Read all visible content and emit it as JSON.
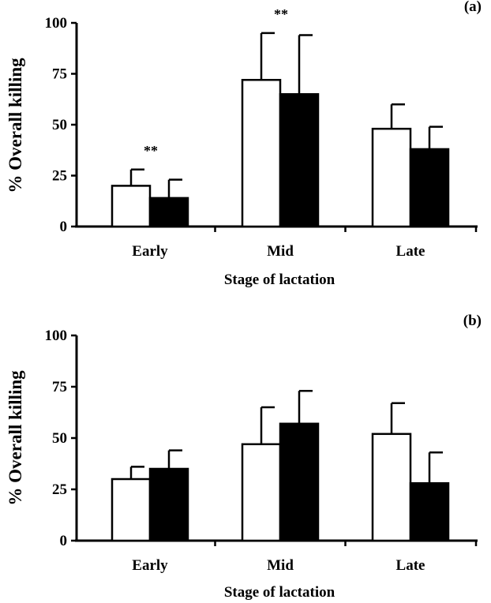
{
  "chart_data": [
    {
      "type": "bar",
      "panel_label": "(a)",
      "categories": [
        "Early",
        "Mid",
        "Late"
      ],
      "series": [
        {
          "color": "#ffffff",
          "values": [
            20,
            72,
            48
          ],
          "errors": [
            8,
            23,
            12
          ]
        },
        {
          "color": "#000000",
          "values": [
            14,
            65,
            38
          ],
          "errors": [
            9,
            29,
            11
          ]
        }
      ],
      "significance": [
        "**",
        "**",
        ""
      ],
      "xlabel": "Stage of lactation",
      "ylabel": "% Overall killing",
      "ylim": [
        0,
        100
      ],
      "yticks": [
        "0",
        "25",
        "50",
        "75",
        "100"
      ],
      "grid": false,
      "legend": "none"
    },
    {
      "type": "bar",
      "panel_label": "(b)",
      "categories": [
        "Early",
        "Mid",
        "Late"
      ],
      "series": [
        {
          "color": "#ffffff",
          "values": [
            30,
            47,
            52
          ],
          "errors": [
            6,
            18,
            15
          ]
        },
        {
          "color": "#000000",
          "values": [
            35,
            57,
            28
          ],
          "errors": [
            9,
            16,
            15
          ]
        }
      ],
      "significance": [
        "",
        "",
        ""
      ],
      "xlabel": "Stage of lactation",
      "ylabel": "% Overall killing",
      "ylim": [
        0,
        100
      ],
      "yticks": [
        "0",
        "25",
        "50",
        "75",
        "100"
      ],
      "grid": false,
      "legend": "none"
    }
  ]
}
